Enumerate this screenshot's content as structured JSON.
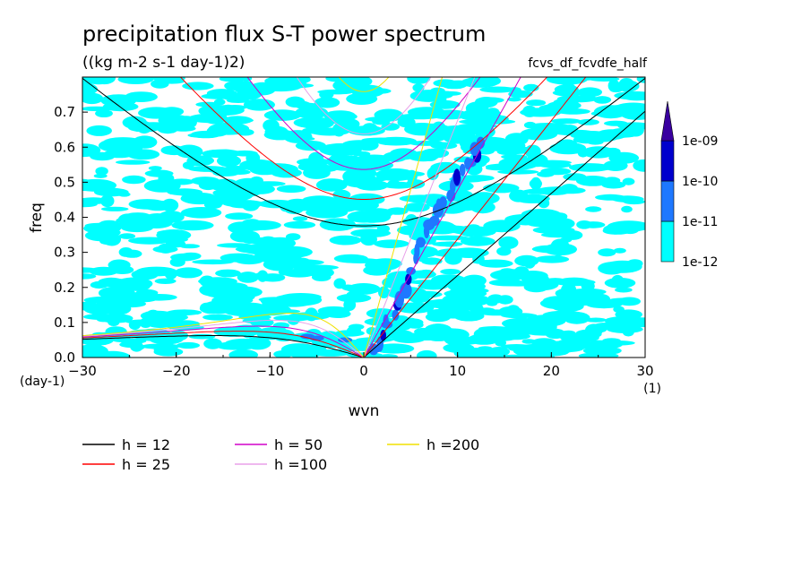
{
  "chart_data": {
    "type": "heatmap",
    "title": "precipitation flux S-T power spectrum",
    "subtitle": "((kg m-2 s-1 day-1)2)",
    "source_label": "fcvs_df_fcvdfe_half",
    "xlabel": "wvn",
    "ylabel": "freq",
    "x_unit": "(1)",
    "y_unit": "(day-1)",
    "xlim": [
      -30,
      30
    ],
    "ylim": [
      0,
      0.8
    ],
    "x_ticks": [
      -30,
      -20,
      -10,
      0,
      10,
      20,
      30
    ],
    "x_tick_labels": [
      "-30",
      "-20",
      "-10",
      "0",
      "10",
      "20",
      "30"
    ],
    "y_ticks": [
      0.0,
      0.1,
      0.2,
      0.3,
      0.4,
      0.5,
      0.6,
      0.7
    ],
    "y_tick_labels": [
      "0.0",
      "0.1",
      "0.2",
      "0.3",
      "0.4",
      "0.5",
      "0.6",
      "0.7"
    ],
    "colorbar": {
      "levels": [
        "1e-12",
        "1e-11",
        "1e-10",
        "1e-09"
      ],
      "colors": [
        "#00ffff",
        "#1e78ff",
        "#0000cd",
        "#3a00a0"
      ],
      "extend": "max"
    },
    "dispersion_curves": [
      {
        "name": "h = 12",
        "h": 12,
        "color": "#000000"
      },
      {
        "name": "h = 25",
        "h": 25,
        "color": "#ff0000"
      },
      {
        "name": "h = 50",
        "h": 50,
        "color": "#d000c8"
      },
      {
        "name": "h =100",
        "h": 100,
        "color": "#e8a0e8"
      },
      {
        "name": "h =200",
        "h": 200,
        "color": "#f0e000"
      }
    ],
    "strong_power_ridge": {
      "description_points_wvn_freq": [
        [
          1,
          0.03
        ],
        [
          3,
          0.12
        ],
        [
          5,
          0.25
        ],
        [
          7,
          0.38
        ],
        [
          9,
          0.47
        ],
        [
          11,
          0.55
        ],
        [
          13,
          0.62
        ]
      ]
    }
  }
}
